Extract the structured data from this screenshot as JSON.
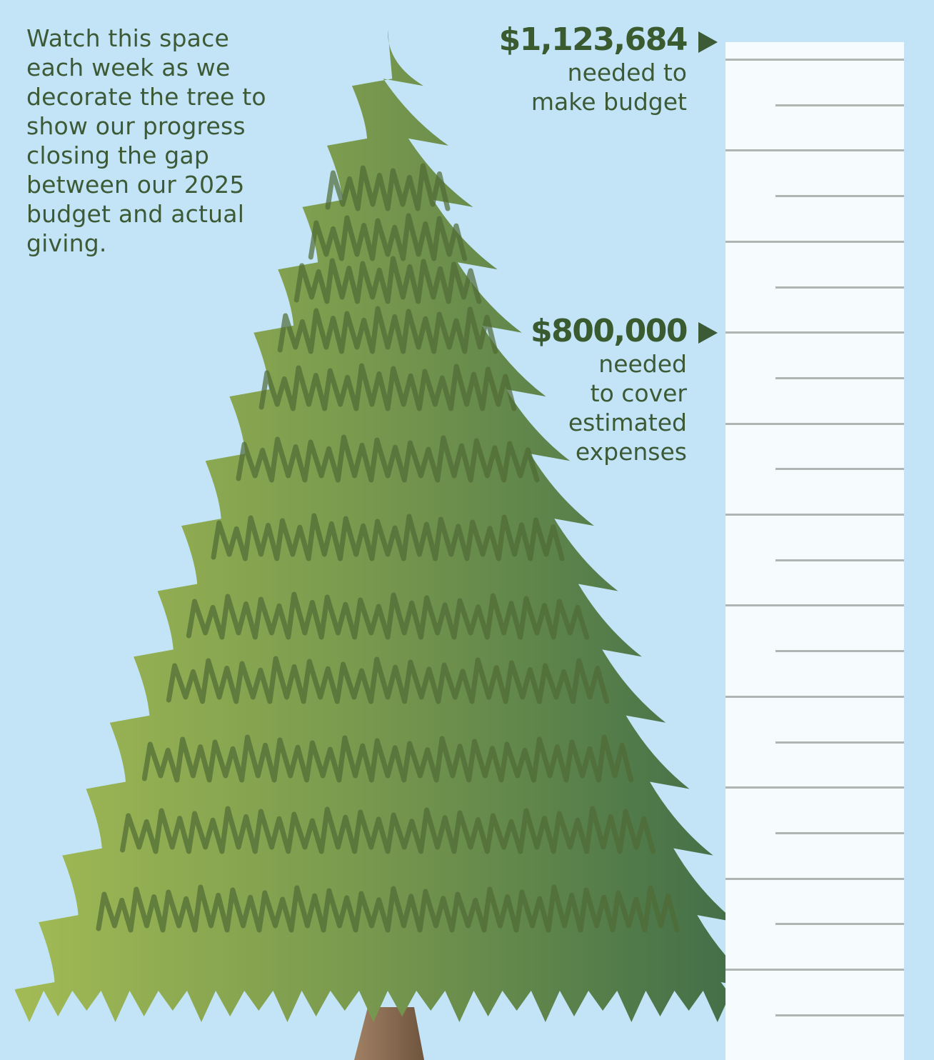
{
  "intro_text": "Watch this space each week as we decorate the tree to show our progress closing the gap between our 2025 budget and actual giving.",
  "goals": [
    {
      "amount": "$1,123,684",
      "caption_lines": [
        "needed to",
        "make budget"
      ]
    },
    {
      "amount": "$800,000",
      "caption_lines": [
        "needed",
        "to cover",
        "estimated",
        "expenses"
      ]
    }
  ],
  "colors": {
    "sky": "#c3e4f7",
    "text": "#3d5a36",
    "gauge_fill": "#f6fbfe",
    "gauge_ticks": "#adb6b2",
    "tree_light": "#9bb653",
    "tree_dark": "#42704a",
    "trunk": "#8e6e52"
  },
  "icons": [
    "christmas-tree-icon",
    "right-triangle-marker-icon"
  ]
}
